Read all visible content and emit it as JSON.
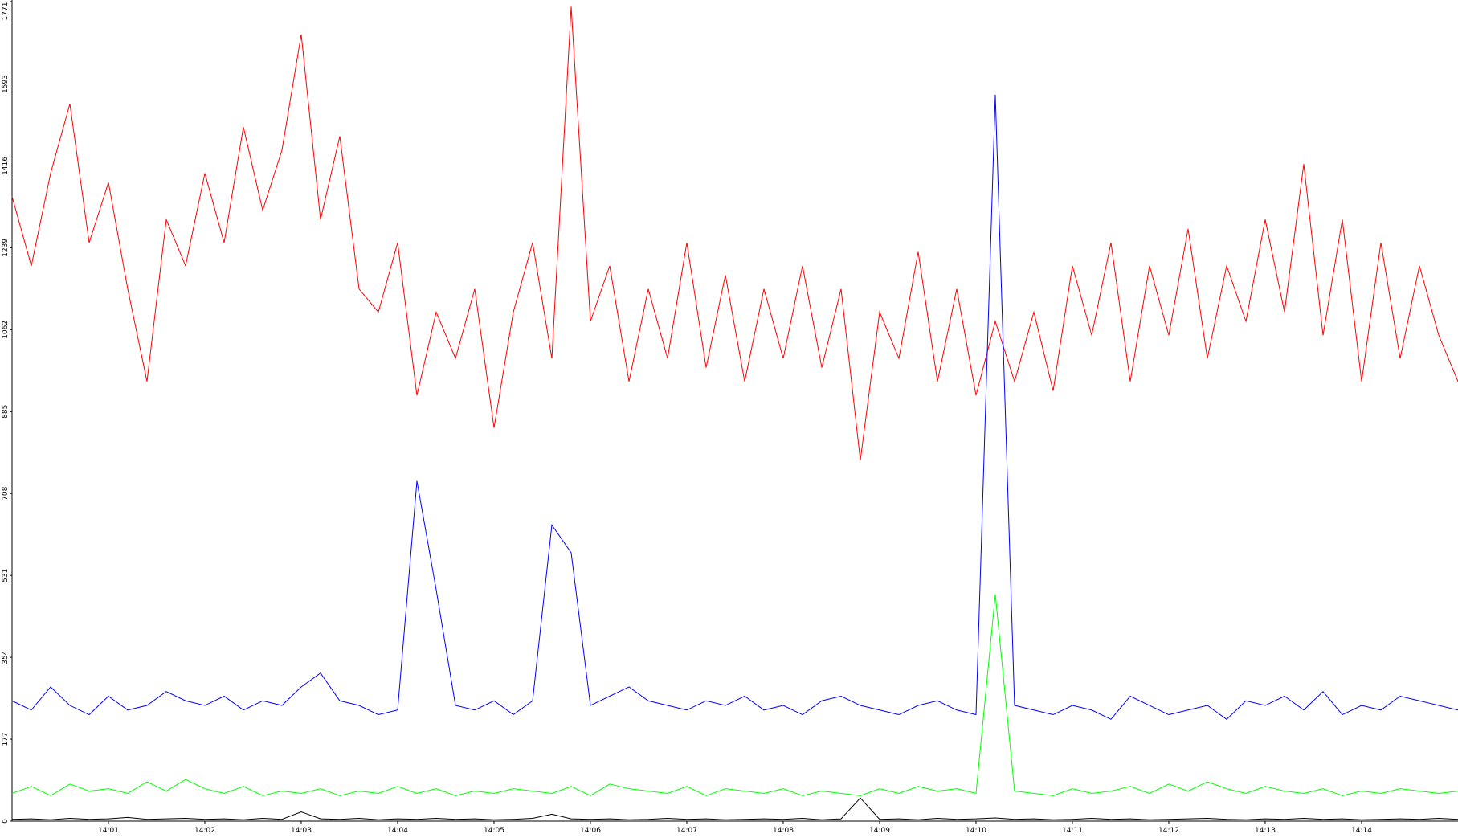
{
  "chart_data": {
    "type": "line",
    "x": [
      0,
      0.2,
      0.4,
      0.6,
      0.8,
      1.0,
      1.2,
      1.4,
      1.6,
      1.8,
      2.0,
      2.2,
      2.4,
      2.6,
      2.8,
      3.0,
      3.2,
      3.4,
      3.6,
      3.8,
      4.0,
      4.2,
      4.4,
      4.6,
      4.8,
      5.0,
      5.2,
      5.4,
      5.6,
      5.8,
      6.0,
      6.2,
      6.4,
      6.6,
      6.8,
      7.0,
      7.2,
      7.4,
      7.6,
      7.8,
      8.0,
      8.2,
      8.4,
      8.6,
      8.8,
      9.0,
      9.2,
      9.4,
      9.6,
      9.8,
      10.0,
      10.2,
      10.4,
      10.6,
      10.8,
      11.0,
      11.2,
      11.4,
      11.6,
      11.8,
      12.0,
      12.2,
      12.4,
      12.6,
      12.8,
      13.0,
      13.2,
      13.4,
      13.6,
      13.8,
      14.0,
      14.2,
      14.4,
      14.6,
      14.8,
      15.0
    ],
    "series": [
      {
        "color": "#ff0000",
        "values": [
          1350,
          1200,
          1400,
          1550,
          1250,
          1380,
          1150,
          950,
          1300,
          1200,
          1400,
          1250,
          1500,
          1320,
          1450,
          1700,
          1300,
          1480,
          1150,
          1100,
          1250,
          920,
          1100,
          1000,
          1150,
          850,
          1100,
          1250,
          1000,
          1760,
          1080,
          1200,
          950,
          1150,
          1000,
          1250,
          980,
          1180,
          950,
          1150,
          1000,
          1200,
          980,
          1150,
          780,
          1100,
          1000,
          1230,
          950,
          1150,
          920,
          1080,
          950,
          1100,
          930,
          1200,
          1050,
          1250,
          950,
          1200,
          1050,
          1280,
          1000,
          1200,
          1080,
          1300,
          1100,
          1420,
          1050,
          1300,
          950,
          1250,
          1000,
          1200,
          1050,
          950
        ]
      },
      {
        "color": "#0000ff",
        "values": [
          260,
          240,
          290,
          250,
          230,
          270,
          240,
          250,
          280,
          260,
          250,
          270,
          240,
          260,
          250,
          290,
          320,
          260,
          250,
          230,
          240,
          735,
          500,
          250,
          240,
          260,
          230,
          260,
          640,
          580,
          250,
          270,
          290,
          260,
          250,
          240,
          260,
          250,
          270,
          240,
          250,
          230,
          260,
          270,
          250,
          240,
          230,
          250,
          260,
          240,
          230,
          1570,
          250,
          240,
          230,
          250,
          240,
          220,
          270,
          250,
          230,
          240,
          250,
          220,
          260,
          250,
          270,
          240,
          280,
          230,
          250,
          240,
          270,
          260,
          250,
          240
        ]
      },
      {
        "color": "#00ff00",
        "values": [
          60,
          75,
          55,
          80,
          65,
          70,
          60,
          85,
          65,
          90,
          70,
          60,
          75,
          55,
          65,
          60,
          70,
          55,
          65,
          60,
          75,
          60,
          70,
          55,
          65,
          60,
          70,
          65,
          60,
          75,
          55,
          80,
          70,
          65,
          60,
          75,
          55,
          70,
          65,
          60,
          70,
          55,
          65,
          60,
          55,
          70,
          60,
          75,
          65,
          70,
          60,
          490,
          65,
          60,
          55,
          70,
          60,
          65,
          75,
          60,
          80,
          65,
          85,
          70,
          60,
          75,
          65,
          60,
          70,
          55,
          65,
          60,
          70,
          65,
          60,
          65
        ]
      },
      {
        "color": "#000000",
        "values": [
          4,
          5,
          3,
          6,
          4,
          5,
          8,
          4,
          5,
          6,
          4,
          5,
          3,
          6,
          4,
          20,
          5,
          4,
          6,
          3,
          5,
          4,
          6,
          4,
          5,
          3,
          4,
          6,
          15,
          5,
          4,
          5,
          3,
          4,
          6,
          4,
          5,
          3,
          4,
          5,
          4,
          6,
          3,
          5,
          50,
          4,
          5,
          3,
          6,
          4,
          5,
          7,
          4,
          5,
          3,
          4,
          6,
          4,
          5,
          3,
          4,
          5,
          6,
          4,
          3,
          5,
          4,
          6,
          4,
          5,
          3,
          4,
          5,
          4,
          6,
          4
        ]
      }
    ],
    "xlim": [
      0,
      15
    ],
    "ylim": [
      0,
      1771
    ],
    "yticks": [
      0,
      177,
      354,
      531,
      708,
      885,
      1062,
      1239,
      1416,
      1593,
      1771
    ],
    "xticks": [
      {
        "value": 1,
        "label": "14:01"
      },
      {
        "value": 2,
        "label": "14:02"
      },
      {
        "value": 3,
        "label": "14:03"
      },
      {
        "value": 4,
        "label": "14:04"
      },
      {
        "value": 5,
        "label": "14:05"
      },
      {
        "value": 6,
        "label": "14:06"
      },
      {
        "value": 7,
        "label": "14:07"
      },
      {
        "value": 8,
        "label": "14:08"
      },
      {
        "value": 9,
        "label": "14:09"
      },
      {
        "value": 10,
        "label": "14:10"
      },
      {
        "value": 11,
        "label": "14:11"
      },
      {
        "value": 12,
        "label": "14:12"
      },
      {
        "value": 13,
        "label": "14:13"
      },
      {
        "value": 14,
        "label": "14:14"
      }
    ]
  }
}
